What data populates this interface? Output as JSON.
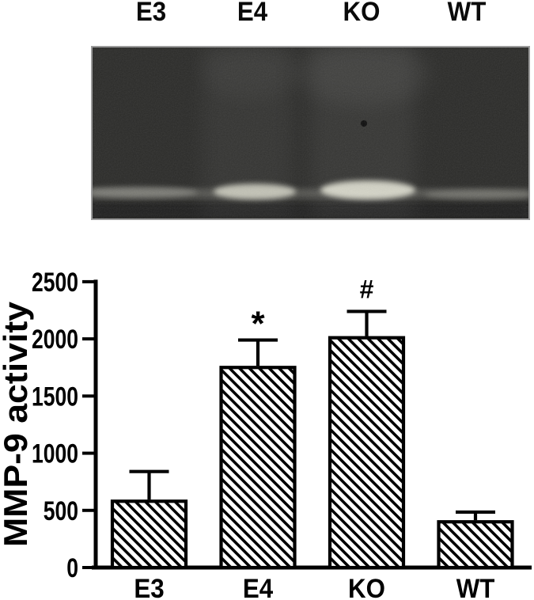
{
  "figure": {
    "background_color": "#ffffff",
    "ink_color": "#000000",
    "gel_background_color": "#2a2a28",
    "gel_border_color": "#9b9b9b"
  },
  "gel_panel": {
    "description": "gelatin zymography gel",
    "lane_labels": [
      "E3",
      "E4",
      "KO",
      "WT"
    ],
    "band_intensities": [
      "faint",
      "strong",
      "strongest",
      "faint"
    ]
  },
  "chart_data": {
    "type": "bar",
    "title": "",
    "xlabel": "",
    "ylabel": "MMP-9 activity",
    "categories": [
      "E3",
      "E4",
      "KO",
      "WT"
    ],
    "values": [
      580,
      1750,
      2010,
      400
    ],
    "errors_up": [
      260,
      240,
      230,
      85
    ],
    "annotations": [
      "",
      "*",
      "#",
      ""
    ],
    "yticks": [
      0,
      500,
      1000,
      1500,
      2000,
      2500
    ],
    "ylim": [
      0,
      2500
    ],
    "grid": false,
    "legend": "none",
    "bar_style": {
      "fill": "#ffffff",
      "hatch": "diagonal-down",
      "edge": "#000000"
    }
  }
}
